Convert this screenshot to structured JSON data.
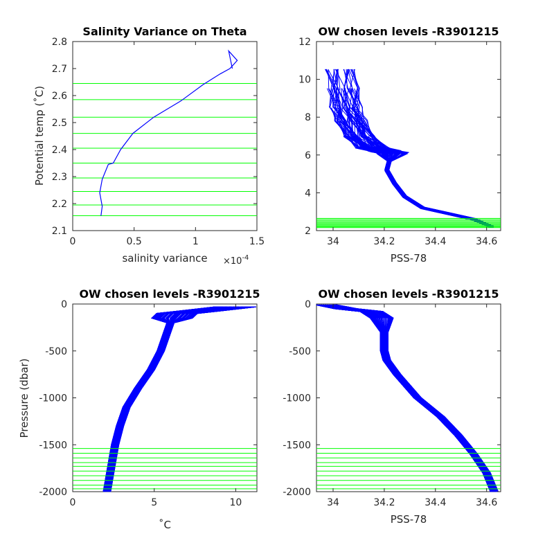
{
  "colors": {
    "profile": "#0000ff",
    "level": "#00ff00",
    "axis": "#262626"
  },
  "chart_data": [
    {
      "type": "line",
      "title": "Salinity Variance on Theta",
      "xlabel": "salinity variance",
      "x_exponent": "×10",
      "x_exponent_power": "-4",
      "ylabel": "Potential temp (˚C)",
      "xlim": [
        0,
        1.5
      ],
      "ylim": [
        2.1,
        2.8
      ],
      "xticks": [
        "0",
        "0.5",
        "1",
        "1.5"
      ],
      "yticks": [
        "2.1",
        "2.2",
        "2.3",
        "2.4",
        "2.5",
        "2.6",
        "2.7",
        "2.8"
      ],
      "series": [
        {
          "x": [
            0.23,
            0.24,
            0.22,
            0.24,
            0.29,
            0.33,
            0.39,
            0.49,
            0.66,
            0.88,
            1.06,
            1.2,
            1.28,
            1.34,
            1.27,
            1.3
          ],
          "y": [
            2.155,
            2.19,
            2.24,
            2.29,
            2.345,
            2.35,
            2.4,
            2.46,
            2.52,
            2.58,
            2.64,
            2.68,
            2.7,
            2.73,
            2.765,
            2.7
          ]
        }
      ],
      "levels": [
        2.155,
        2.195,
        2.245,
        2.295,
        2.35,
        2.405,
        2.46,
        2.52,
        2.585,
        2.645
      ]
    },
    {
      "type": "line",
      "title": "OW chosen levels -R3901215",
      "xlabel": "PSS-78",
      "ylabel": "",
      "xlim": [
        33.935,
        34.655
      ],
      "ylim": [
        2,
        12
      ],
      "xticks": [
        "34",
        "34.2",
        "34.4",
        "34.6"
      ],
      "yticks": [
        "2",
        "4",
        "6",
        "8",
        "10",
        "12"
      ],
      "profile_shape": {
        "S": [
          34.62,
          34.55,
          34.45,
          34.35,
          34.28,
          34.24,
          34.21,
          34.22,
          34.23,
          34.2,
          34.15,
          34.1,
          34.07,
          34.05,
          34.04,
          34.03
        ],
        "T": [
          2.2,
          2.6,
          2.9,
          3.2,
          3.8,
          4.5,
          5.2,
          5.7,
          6.1,
          6.2,
          6.4,
          7.0,
          7.8,
          8.5,
          9.5,
          10.5
        ]
      },
      "levels": [
        2.155,
        2.195,
        2.245,
        2.295,
        2.35,
        2.405,
        2.46,
        2.52,
        2.585,
        2.645
      ]
    },
    {
      "type": "line",
      "title": "OW chosen levels -R3901215",
      "xlabel": "˚C",
      "ylabel": "Pressure (dbar)",
      "xlim": [
        0,
        11.3
      ],
      "ylim": [
        -2000,
        0
      ],
      "xticks": [
        "0",
        "5",
        "10"
      ],
      "yticks": [
        "-2000",
        "-1500",
        "-1000",
        "-500",
        "0"
      ],
      "profile_shape": {
        "T": [
          2.1,
          2.3,
          2.6,
          2.9,
          3.3,
          4.0,
          4.8,
          5.4,
          5.8,
          6.0,
          6.1,
          6.4,
          8.0,
          10.0
        ],
        "P": [
          -2000,
          -1800,
          -1500,
          -1300,
          -1100,
          -900,
          -700,
          -500,
          -300,
          -200,
          -150,
          -100,
          -70,
          -30
        ]
      },
      "levels": [
        -1540,
        -1590,
        -1640,
        -1690,
        -1730,
        -1780,
        -1830,
        -1880,
        -1930,
        -1970
      ]
    },
    {
      "type": "line",
      "title": "OW chosen levels -R3901215",
      "xlabel": "PSS-78",
      "ylabel": "",
      "xlim": [
        33.935,
        34.655
      ],
      "ylim": [
        -2000,
        0
      ],
      "xticks": [
        "34",
        "34.2",
        "34.4",
        "34.6"
      ],
      "yticks": [
        "-2000",
        "-1500",
        "-1000",
        "-500",
        "0"
      ],
      "profile_shape": {
        "S": [
          33.97,
          34.05,
          34.15,
          34.19,
          34.2,
          34.2,
          34.21,
          34.25,
          34.33,
          34.42,
          34.49,
          34.55,
          34.6,
          34.63
        ],
        "P": [
          -10,
          -50,
          -80,
          -150,
          -300,
          -500,
          -600,
          -750,
          -1000,
          -1200,
          -1400,
          -1600,
          -1800,
          -2000
        ]
      },
      "levels": [
        -1540,
        -1590,
        -1640,
        -1690,
        -1730,
        -1780,
        -1830,
        -1880,
        -1930,
        -1970
      ]
    }
  ]
}
